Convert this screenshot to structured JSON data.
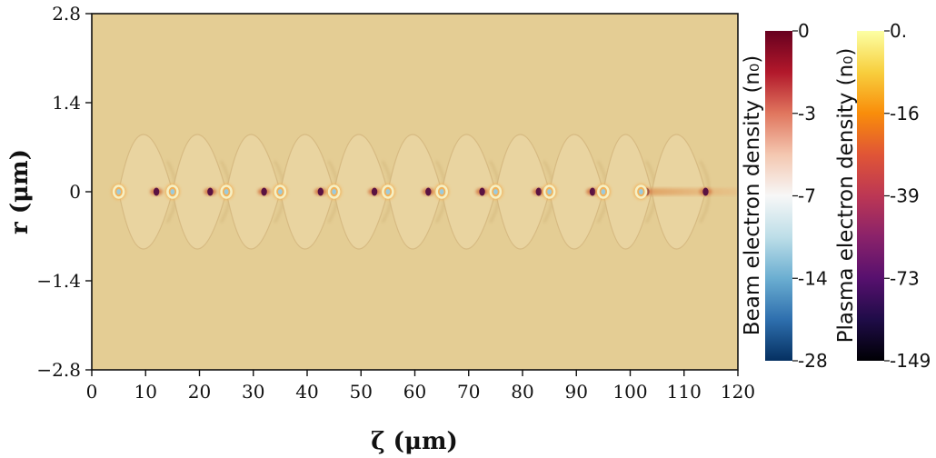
{
  "chart_data": {
    "type": "heatmap",
    "title": "",
    "xlabel": "ζ (μm)",
    "ylabel": "r (μm)",
    "xlim": [
      0,
      120
    ],
    "ylim": [
      -2.8,
      2.8
    ],
    "xticks": [
      0,
      10,
      20,
      30,
      40,
      50,
      60,
      70,
      80,
      90,
      100,
      110,
      120
    ],
    "xtick_labels": [
      "0",
      "10",
      "20",
      "30",
      "40",
      "50",
      "60",
      "70",
      "80",
      "90",
      "100",
      "110",
      "120"
    ],
    "yticks": [
      2.8,
      1.4,
      0,
      -1.4,
      -2.8
    ],
    "ytick_labels": [
      "2.8",
      "1.4",
      "0",
      "−1.4",
      "−2.8"
    ],
    "background_color": "#E4CD94",
    "plasma_bubbles": [
      {
        "start": 5,
        "end": 15
      },
      {
        "start": 15,
        "end": 25
      },
      {
        "start": 25,
        "end": 35
      },
      {
        "start": 35,
        "end": 45
      },
      {
        "start": 45,
        "end": 55
      },
      {
        "start": 55,
        "end": 65
      },
      {
        "start": 65,
        "end": 75
      },
      {
        "start": 75,
        "end": 85
      },
      {
        "start": 85,
        "end": 95
      },
      {
        "start": 95,
        "end": 104
      },
      {
        "start": 104,
        "end": 114
      }
    ],
    "bubble_max_radius": 0.9,
    "beam_bunches": [
      5,
      15,
      25,
      35,
      45,
      55,
      65,
      75,
      85,
      95,
      102
    ],
    "plasma_density_spikes": [
      12,
      22,
      32,
      42.5,
      52.5,
      62.5,
      72.5,
      83,
      93,
      103,
      114
    ],
    "trailing_beam": [
      104,
      120
    ],
    "colorbars": [
      {
        "label": "Beam electron density (n₀)",
        "tick_labels": [
          "0",
          "-3",
          "-7",
          "-14",
          "-28"
        ],
        "colors": [
          "#67001F",
          "#B2182B",
          "#E0765E",
          "#F4C7B0",
          "#F7F7F7",
          "#BDDEE8",
          "#6BAED1",
          "#2E6FAE",
          "#053061"
        ]
      },
      {
        "label": "Plasma electron density (n₀)",
        "tick_labels": [
          "0.",
          "-16",
          "-39",
          "-73",
          "-149"
        ],
        "colors": [
          "#FCFFA4",
          "#F8CF3E",
          "#F98D0A",
          "#E05536",
          "#BC3754",
          "#8A226A",
          "#57106E",
          "#1F0C48",
          "#000004"
        ]
      }
    ]
  }
}
